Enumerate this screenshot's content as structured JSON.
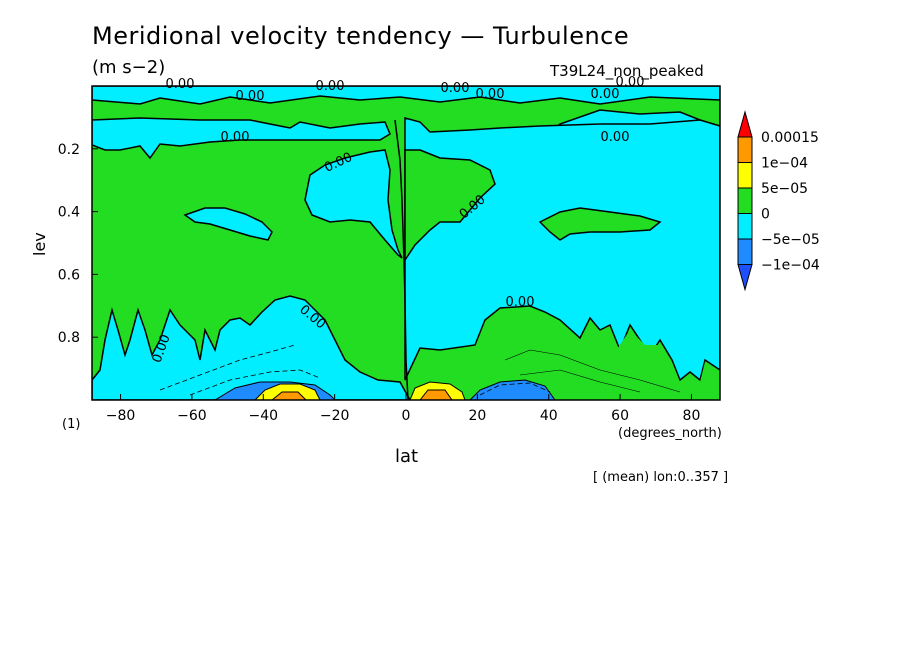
{
  "chart_data": {
    "type": "contour",
    "title": "Meridional velocity tendency — Turbulence",
    "units": "(m s−2)",
    "experiment": "T39L24_non_peaked",
    "xlabel": "lat",
    "x_units": "(degrees_north)",
    "ylabel": "lev",
    "scale_note": "(1)",
    "averaging_note": "[ (mean) lon:0..357 ]",
    "xlim": [
      -88,
      88
    ],
    "ylim": [
      1.0,
      0.0
    ],
    "x_ticks": [
      "−80",
      "−60",
      "−40",
      "−20",
      "0",
      "20",
      "40",
      "60",
      "80"
    ],
    "x_tick_values": [
      -80,
      -60,
      -40,
      -20,
      0,
      20,
      40,
      60,
      80
    ],
    "y_ticks": [
      "0.2",
      "0.4",
      "0.6",
      "0.8"
    ],
    "y_tick_values": [
      0.2,
      0.4,
      0.6,
      0.8
    ],
    "contour_labels": [
      "0.00",
      "0.00",
      "0.00",
      "0.00",
      "0.00",
      "0.00",
      "0.00",
      "0.00",
      "0.00",
      "0.00",
      "0.00",
      "0.00",
      "0.00",
      "0.00"
    ],
    "legend": {
      "labels": [
        "0.00015",
        "1e−04",
        "5e−05",
        "0",
        "−5e−05",
        "−1e−04"
      ],
      "colors": [
        "#ff0000",
        "#ff9900",
        "#ffff00",
        "#22dd22",
        "#00eeff",
        "#1e8cff",
        "#1e50ff"
      ]
    },
    "regions": {
      "positive_0_to_5e-05": "#22dd22",
      "negative_-5e-05_to_0": "#00eeff",
      "negative_-1e-04_to_-5e-05": "#1e8cff",
      "positive_5e-05_to_1e-04": "#ffff00",
      "positive_1e-04_to_0.00015": "#ff9900"
    }
  }
}
